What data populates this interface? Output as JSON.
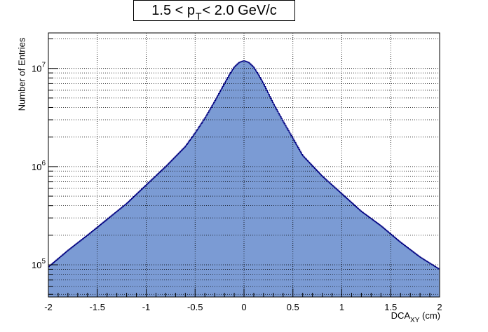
{
  "chart_data": {
    "type": "area",
    "title": {
      "prefix": "1.5 < p",
      "subscript": "T",
      "suffix": " < 2.0 GeV/c"
    },
    "xlabel": {
      "main": "DCA",
      "subscript": "XY",
      "suffix": " (cm)"
    },
    "ylabel": "Number of Entries",
    "xlim": [
      -2,
      2
    ],
    "ylim": [
      47000,
      23000000
    ],
    "yscale": "log",
    "grid": true,
    "x_ticks": [
      "-2",
      "-1.5",
      "-1",
      "-0.5",
      "0",
      "0.5",
      "1",
      "1.5",
      "2"
    ],
    "y_ticks": [
      {
        "base": "10",
        "exp": "5",
        "value": 100000
      },
      {
        "base": "10",
        "exp": "6",
        "value": 1000000
      },
      {
        "base": "10",
        "exp": "7",
        "value": 10000000
      }
    ],
    "series": [
      {
        "fill": "#7b9bd4",
        "line": "#000080",
        "x": [
          -2.0,
          -1.8,
          -1.6,
          -1.4,
          -1.2,
          -1.0,
          -0.8,
          -0.6,
          -0.5,
          -0.4,
          -0.3,
          -0.2,
          -0.15,
          -0.1,
          -0.05,
          0.0,
          0.05,
          0.1,
          0.15,
          0.2,
          0.3,
          0.4,
          0.5,
          0.6,
          0.8,
          1.0,
          1.2,
          1.4,
          1.6,
          1.8,
          2.0
        ],
        "y": [
          95000,
          140000,
          200000,
          290000,
          420000,
          650000,
          1000000,
          1600000,
          2200000,
          3100000,
          4600000,
          7000000,
          8600000,
          10300000,
          11500000,
          12000000,
          11500000,
          10300000,
          8600000,
          7000000,
          4400000,
          2900000,
          1950000,
          1300000,
          800000,
          530000,
          350000,
          250000,
          170000,
          120000,
          90000
        ]
      }
    ]
  }
}
